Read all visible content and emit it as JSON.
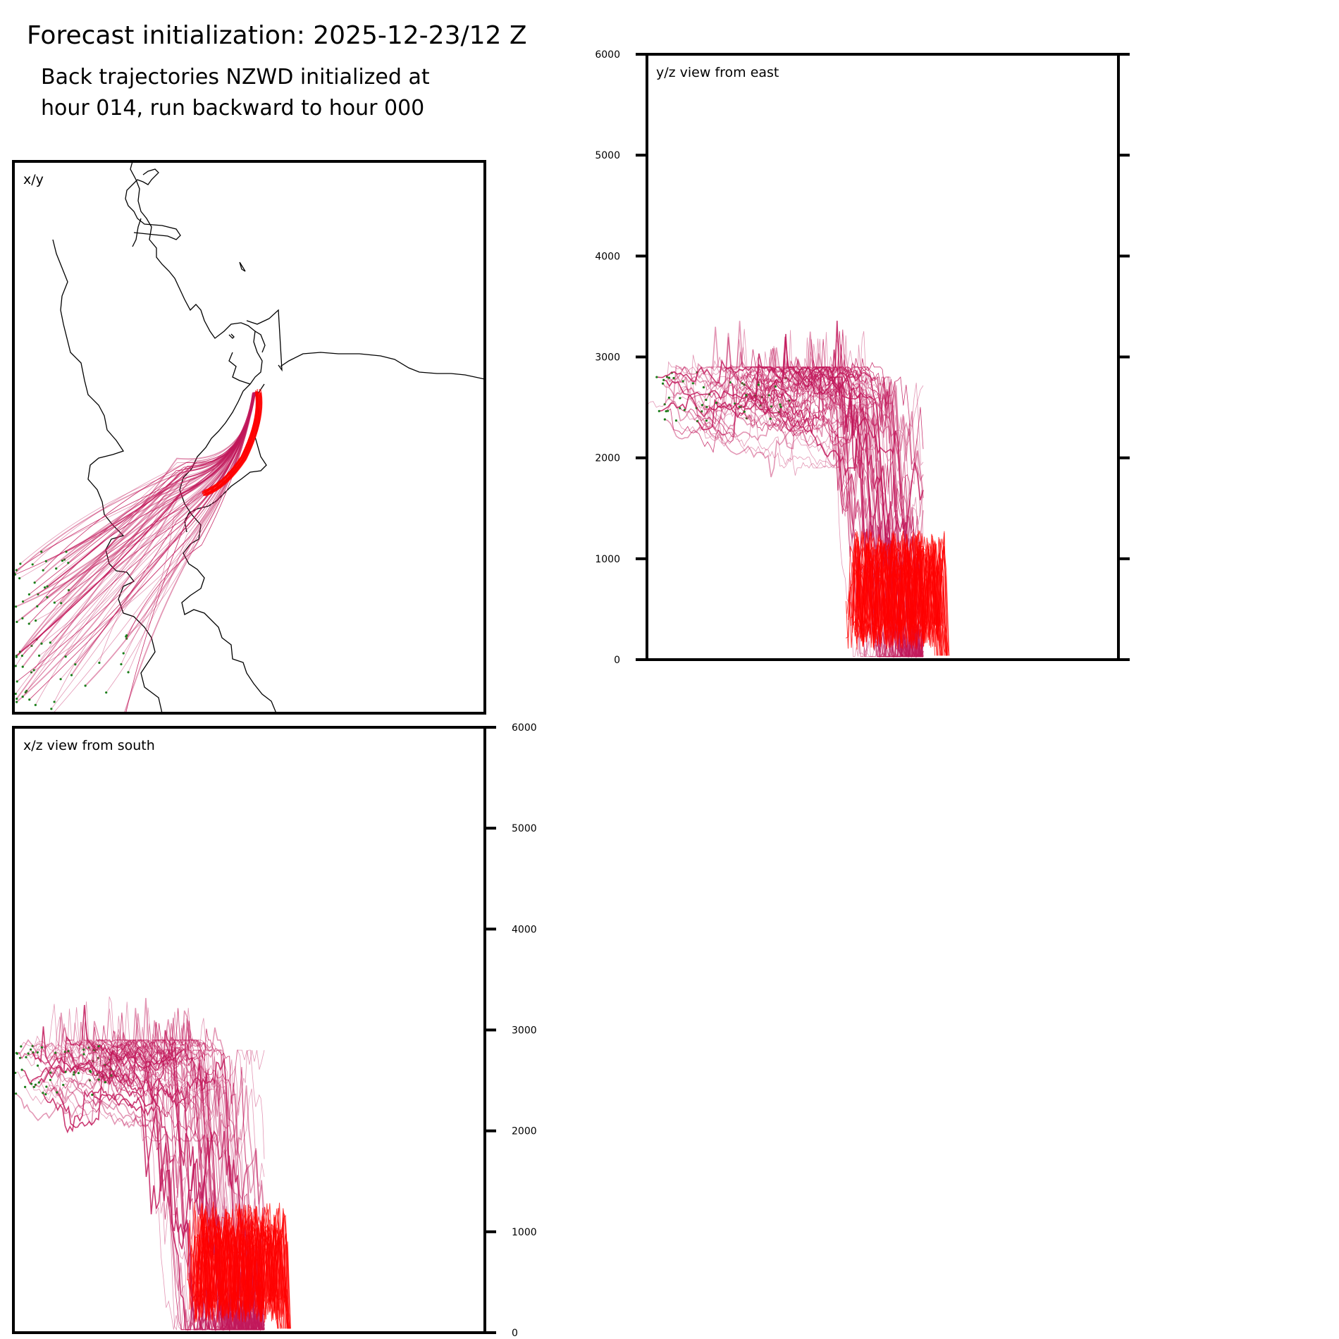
{
  "title": "Forecast initialization: 2025-12-23/12 Z",
  "subtitle_line1": "Back trajectories NZWD initialized at",
  "subtitle_line2": "hour 014, run backward to hour 000",
  "panels": {
    "xy": {
      "label": "x/y"
    },
    "yz": {
      "label": "y/z view from east"
    },
    "xz": {
      "label": "x/z view from south"
    }
  },
  "colors": {
    "trajectory_old": "#c2185b",
    "trajectory_young": "#ff0000",
    "start_marker": "#1a7f1a",
    "coastline": "#000000",
    "frame": "#000000"
  },
  "chart_data": [
    {
      "type": "line",
      "panel": "xy",
      "title": "x/y",
      "description": "Map view of back trajectories with coastline",
      "grid": false
    },
    {
      "type": "line",
      "panel": "yz",
      "title": "y/z view from east",
      "ylabel": "",
      "ylim": [
        0,
        6000
      ],
      "yticks": [
        "0",
        "1000",
        "2000",
        "3000",
        "4000",
        "5000",
        "6000"
      ],
      "grid": false
    },
    {
      "type": "line",
      "panel": "xz",
      "title": "x/z view from south",
      "ylabel": "",
      "ylim": [
        0,
        6000
      ],
      "yticks": [
        "0",
        "1000",
        "2000",
        "3000",
        "4000",
        "5000",
        "6000"
      ],
      "grid": false
    }
  ]
}
